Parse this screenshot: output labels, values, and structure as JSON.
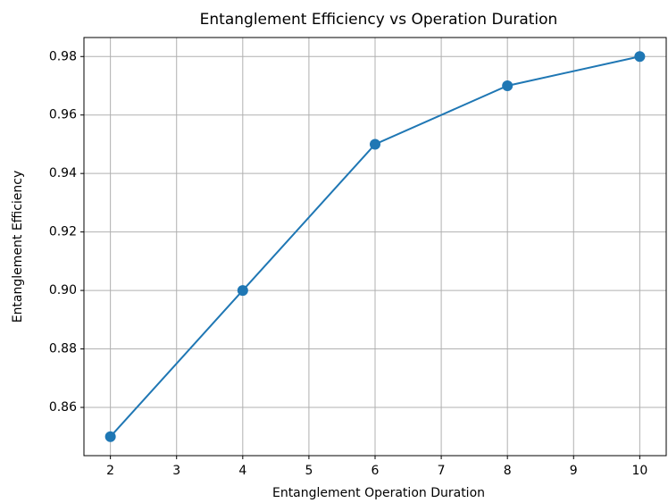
{
  "chart_data": {
    "type": "line",
    "title": "Entanglement Efficiency vs Operation Duration",
    "x_label": "Entanglement Operation Duration",
    "y_label": "Entanglement Efficiency",
    "x": [
      2,
      4,
      6,
      8,
      10
    ],
    "series": [
      {
        "name": "Entanglement Efficiency",
        "color": "#1f77b4",
        "values": [
          0.85,
          0.9,
          0.95,
          0.97,
          0.98
        ]
      }
    ],
    "xlim": [
      1.6,
      10.4
    ],
    "xticks": [
      2,
      3,
      4,
      5,
      6,
      7,
      8,
      9,
      10
    ],
    "ylim": [
      0.8435,
      0.9865
    ],
    "yticks": [
      0.86,
      0.88,
      {
        "value": 0.9,
        "label": "0.90"
      },
      0.92,
      0.94,
      0.96,
      0.98
    ],
    "grid": true
  }
}
